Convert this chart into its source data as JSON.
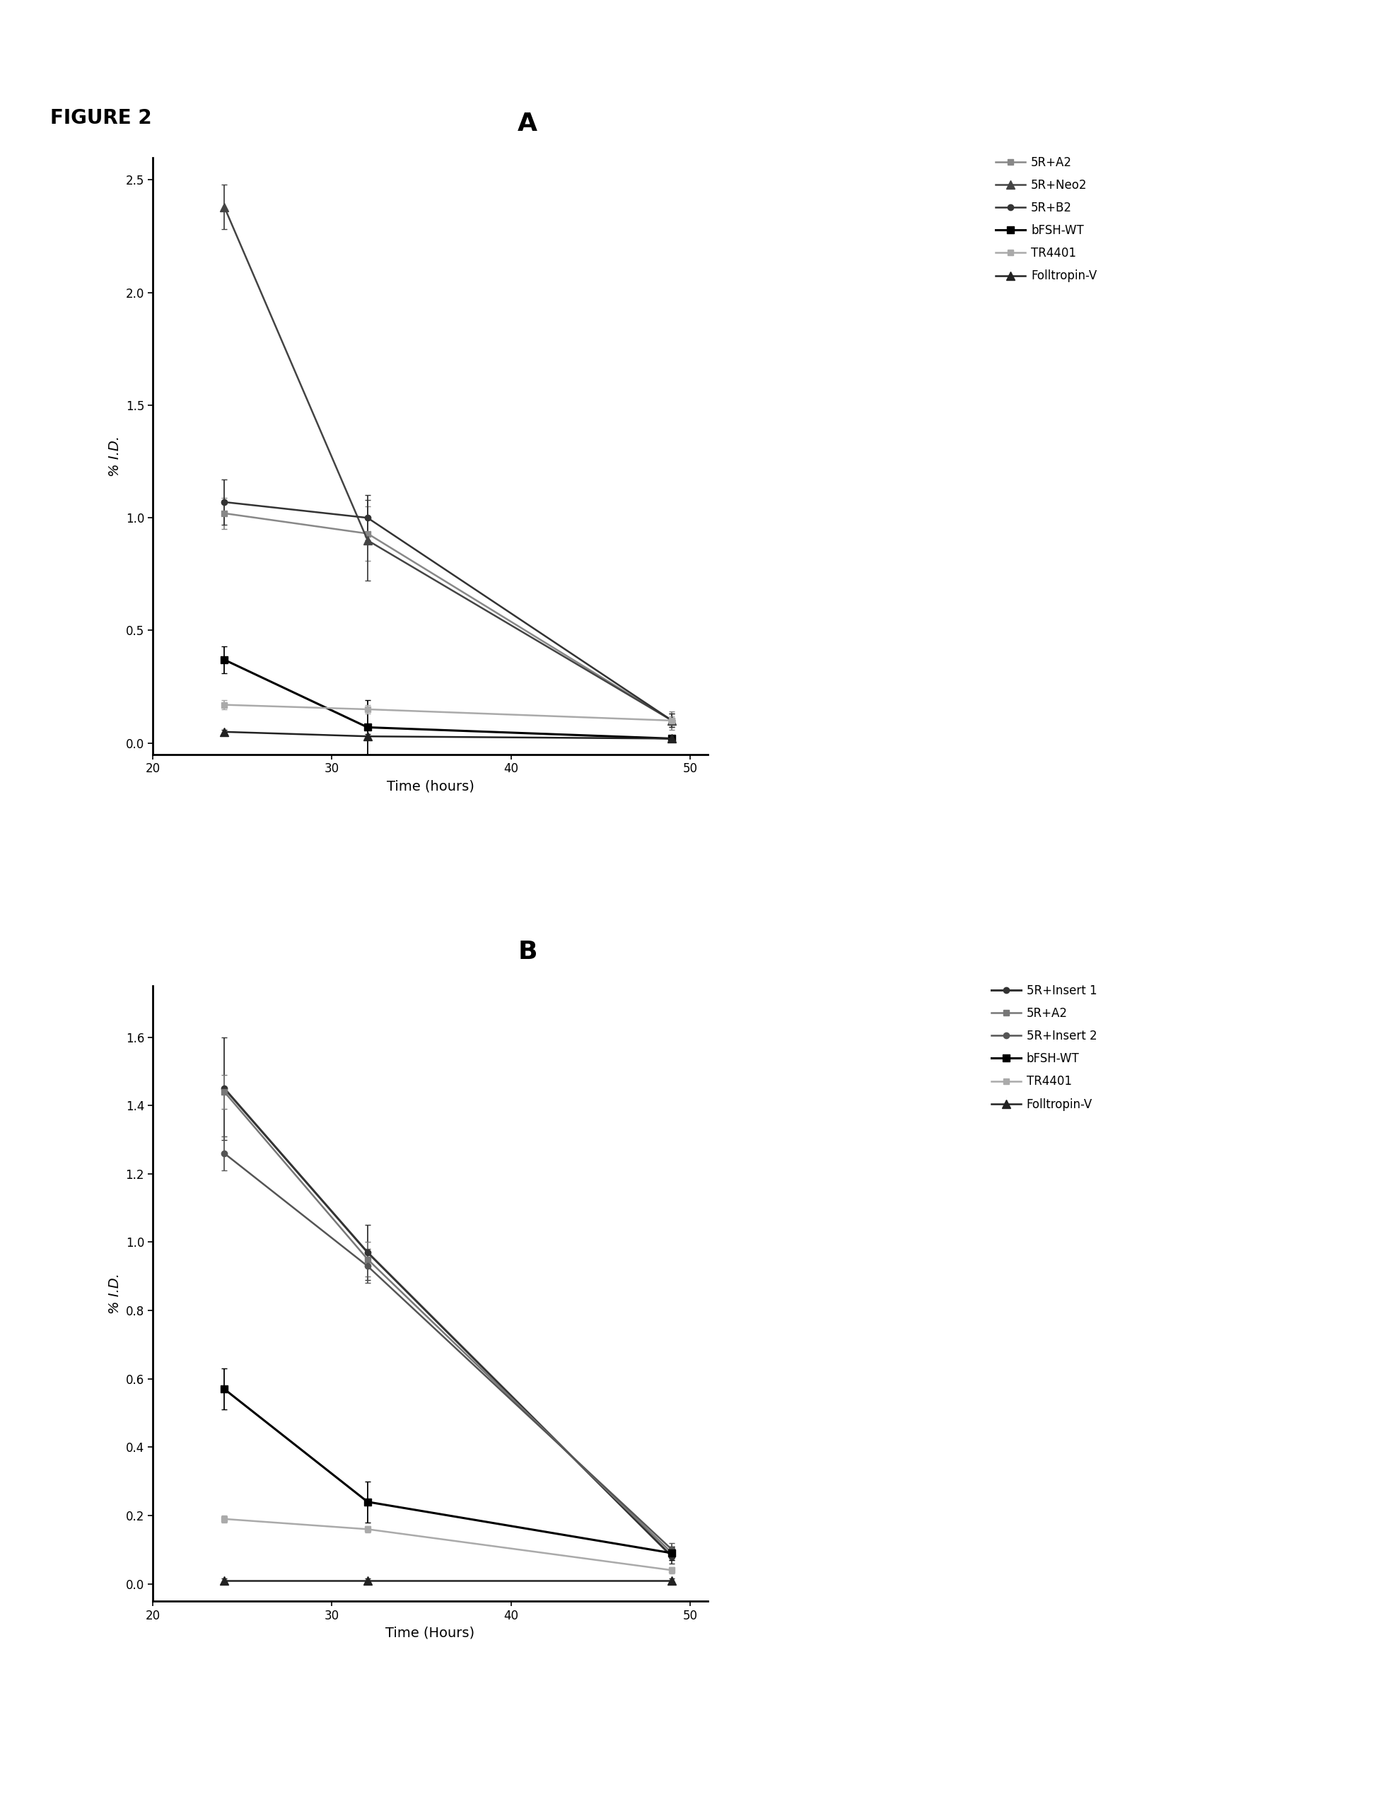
{
  "fig_label": "FIGURE 2",
  "panel_A": {
    "title": "A",
    "xlabel": "Time (hours)",
    "ylabel": "% I.D.",
    "xlim": [
      20,
      51
    ],
    "ylim": [
      -0.05,
      2.6
    ],
    "xticks": [
      20,
      30,
      40,
      50
    ],
    "yticks": [
      0.0,
      0.5,
      1.0,
      1.5,
      2.0,
      2.5
    ],
    "time": [
      24,
      32,
      49
    ],
    "series": [
      {
        "label": "5R+A2",
        "color": "#888888",
        "marker": "s",
        "markersize": 6,
        "linewidth": 1.8,
        "y": [
          1.02,
          0.93,
          0.1
        ],
        "yerr": [
          0.07,
          0.12,
          0.04
        ]
      },
      {
        "label": "5R+Neo2",
        "color": "#444444",
        "marker": "^",
        "markersize": 8,
        "linewidth": 1.8,
        "y": [
          2.38,
          0.9,
          0.1
        ],
        "yerr": [
          0.1,
          0.18,
          0.03
        ]
      },
      {
        "label": "5R+B2",
        "color": "#333333",
        "marker": "o",
        "markersize": 6,
        "linewidth": 1.8,
        "y": [
          1.07,
          1.0,
          0.1
        ],
        "yerr": [
          0.1,
          0.1,
          0.03
        ]
      },
      {
        "label": "bFSH-WT",
        "color": "#000000",
        "marker": "s",
        "markersize": 7,
        "linewidth": 2.2,
        "y": [
          0.37,
          0.07,
          0.02
        ],
        "yerr": [
          0.06,
          0.12,
          0.01
        ]
      },
      {
        "label": "TR4401",
        "color": "#aaaaaa",
        "marker": "s",
        "markersize": 6,
        "linewidth": 1.8,
        "y": [
          0.17,
          0.15,
          0.1
        ],
        "yerr": [
          0.02,
          0.02,
          0.02
        ]
      },
      {
        "label": "Folltropin-V",
        "color": "#222222",
        "marker": "^",
        "markersize": 8,
        "linewidth": 1.8,
        "y": [
          0.05,
          0.03,
          0.02
        ],
        "yerr": [
          0.01,
          0.01,
          0.005
        ]
      }
    ]
  },
  "panel_B": {
    "title": "B",
    "xlabel": "Time (Hours)",
    "ylabel": "% I.D.",
    "xlim": [
      20,
      51
    ],
    "ylim": [
      -0.05,
      1.75
    ],
    "xticks": [
      20,
      30,
      40,
      50
    ],
    "yticks": [
      0.0,
      0.2,
      0.4,
      0.6,
      0.8,
      1.0,
      1.2,
      1.4,
      1.6
    ],
    "time": [
      24,
      32,
      49
    ],
    "series": [
      {
        "label": "5R+Insert 1",
        "color": "#333333",
        "marker": "o",
        "markersize": 6,
        "linewidth": 2.2,
        "y": [
          1.45,
          0.97,
          0.08
        ],
        "yerr": [
          0.15,
          0.08,
          0.02
        ]
      },
      {
        "label": "5R+A2",
        "color": "#777777",
        "marker": "s",
        "markersize": 6,
        "linewidth": 1.8,
        "y": [
          1.44,
          0.95,
          0.09
        ],
        "yerr": [
          0.05,
          0.05,
          0.02
        ]
      },
      {
        "label": "5R+Insert 2",
        "color": "#555555",
        "marker": "o",
        "markersize": 6,
        "linewidth": 1.8,
        "y": [
          1.26,
          0.93,
          0.1
        ],
        "yerr": [
          0.05,
          0.05,
          0.02
        ]
      },
      {
        "label": "bFSH-WT",
        "color": "#000000",
        "marker": "s",
        "markersize": 7,
        "linewidth": 2.2,
        "y": [
          0.57,
          0.24,
          0.09
        ],
        "yerr": [
          0.06,
          0.06,
          0.02
        ]
      },
      {
        "label": "TR4401",
        "color": "#aaaaaa",
        "marker": "s",
        "markersize": 6,
        "linewidth": 1.8,
        "y": [
          0.19,
          0.16,
          0.04
        ],
        "yerr": [
          0.01,
          0.01,
          0.01
        ]
      },
      {
        "label": "Folltropin-V",
        "color": "#222222",
        "marker": "^",
        "markersize": 8,
        "linewidth": 1.8,
        "y": [
          0.01,
          0.01,
          0.01
        ],
        "yerr": [
          0.005,
          0.005,
          0.005
        ]
      }
    ]
  }
}
